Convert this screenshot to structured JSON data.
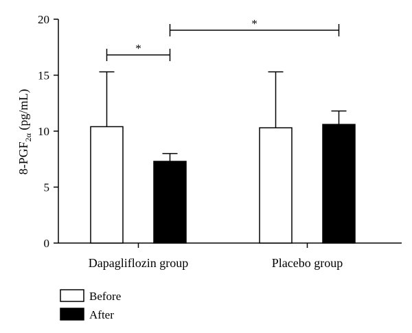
{
  "chart_data": {
    "type": "bar",
    "categories": [
      "Dapagliflozin group",
      "Placebo group"
    ],
    "series": [
      {
        "name": "Before",
        "values": [
          10.4,
          10.3
        ],
        "error": [
          4.9,
          5.0
        ],
        "color": "#ffffff"
      },
      {
        "name": "After",
        "values": [
          7.3,
          10.6
        ],
        "error": [
          0.7,
          1.2
        ],
        "color": "#000000"
      }
    ],
    "ylabel": {
      "main": "8-PGF",
      "sub": "2α",
      "unit": " (pg/mL)"
    },
    "xlabel": "",
    "ylim": [
      0,
      20
    ],
    "yticks": [
      0,
      5,
      10,
      15,
      20
    ],
    "grid": false,
    "legend": "bottom-left",
    "significance": [
      {
        "from": {
          "category": 0,
          "series": 0
        },
        "to": {
          "category": 0,
          "series": 1
        },
        "label": "*"
      },
      {
        "from": {
          "category": 0,
          "series": 1
        },
        "to": {
          "category": 1,
          "series": 1
        },
        "label": "*"
      }
    ]
  }
}
